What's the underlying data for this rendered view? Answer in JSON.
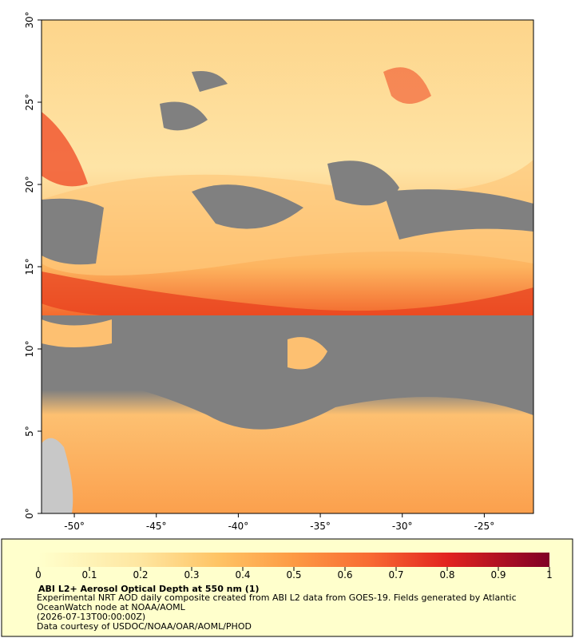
{
  "map": {
    "xlim": [
      -52,
      -22
    ],
    "ylim": [
      0,
      30
    ],
    "xticks": [
      {
        "value": -50,
        "label": "-50°"
      },
      {
        "value": -45,
        "label": "-45°"
      },
      {
        "value": -40,
        "label": "-40°"
      },
      {
        "value": -35,
        "label": "-35°"
      },
      {
        "value": -30,
        "label": "-30°"
      },
      {
        "value": -25,
        "label": "-25°"
      }
    ],
    "yticks": [
      {
        "value": 0,
        "label": "0°"
      },
      {
        "value": 5,
        "label": "5°"
      },
      {
        "value": 10,
        "label": "10°"
      },
      {
        "value": 15,
        "label": "15°"
      },
      {
        "value": 20,
        "label": "20°"
      },
      {
        "value": 25,
        "label": "25°"
      },
      {
        "value": 30,
        "label": "30°"
      }
    ]
  },
  "colorbar": {
    "lim": [
      0,
      1
    ],
    "ticks": [
      0,
      0.1,
      0.2,
      0.3,
      0.4,
      0.5,
      0.6,
      0.7,
      0.8,
      0.9,
      1
    ]
  },
  "legend": {
    "title": "ABI L2+ Aerosol Optical Depth at 550 nm (1)",
    "description": "Experimental NRT AOD daily composite created from ABI L2 data from GOES-19. Fields generated by Atlantic OceanWatch node at NOAA/AOML",
    "time": "(2026-07-13T00:00:00Z)",
    "credit": "Data courtesy of USDOC/NOAA/OAR/AOML/PHOD"
  }
}
